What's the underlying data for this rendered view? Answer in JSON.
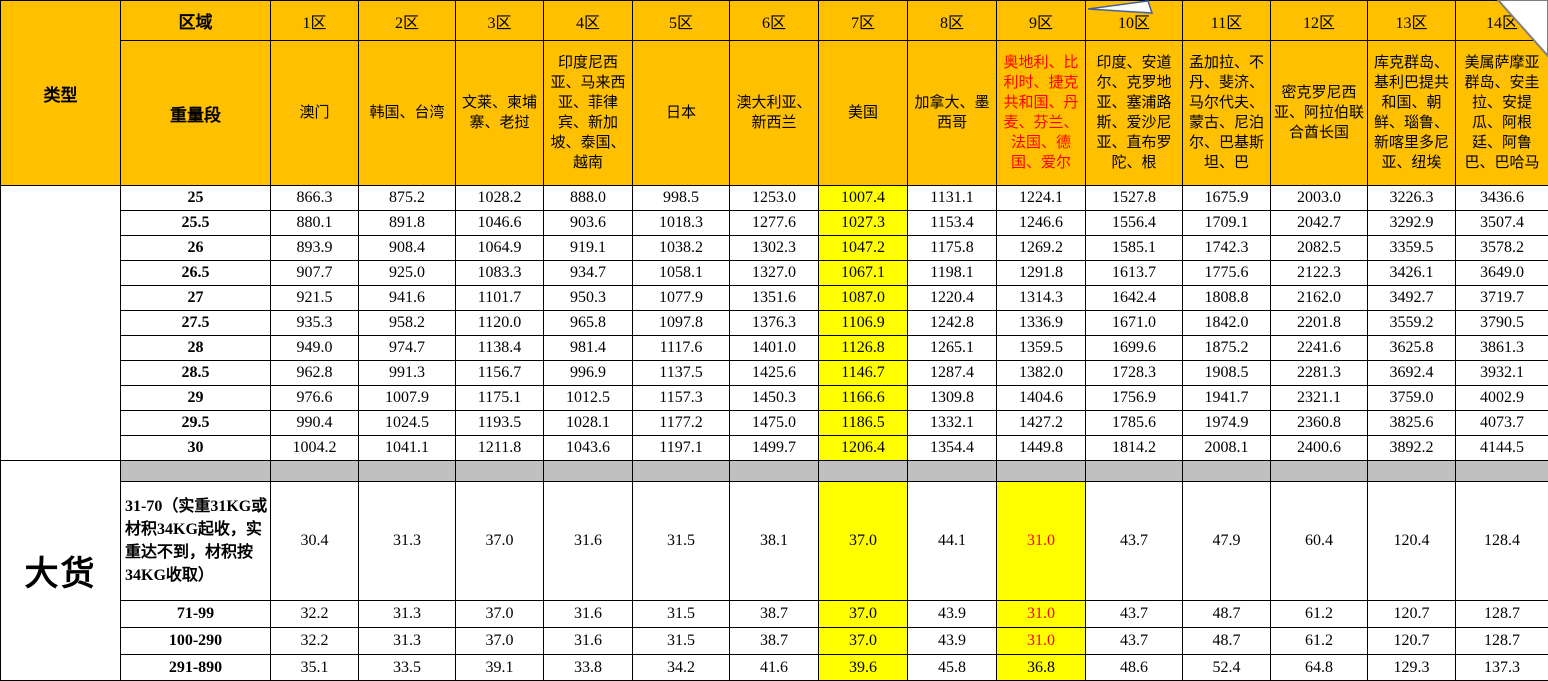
{
  "header": {
    "type_label": "类型",
    "region_label": "区域",
    "weight_label": "重量段",
    "zones": [
      {
        "id": "1区",
        "countries": "澳门"
      },
      {
        "id": "2区",
        "countries": "韩国、台湾"
      },
      {
        "id": "3区",
        "countries": "文莱、柬埔寨、老挝"
      },
      {
        "id": "4区",
        "countries": "印度尼西亚、马来西亚、菲律宾、新加坡、泰国、越南"
      },
      {
        "id": "5区",
        "countries": "日本"
      },
      {
        "id": "6区",
        "countries": "澳大利亚、新西兰"
      },
      {
        "id": "7区",
        "countries": "美国"
      },
      {
        "id": "8区",
        "countries": "加拿大、墨西哥"
      },
      {
        "id": "9区",
        "countries": "奥地利、比利时、捷克共和国、丹麦、芬兰、法国、德国、爱尔",
        "color": "#FF0000"
      },
      {
        "id": "10区",
        "countries": "印度、安道尔、克罗地亚、塞浦路斯、爱沙尼亚、直布罗陀、根"
      },
      {
        "id": "11区",
        "countries": "孟加拉、不丹、斐济、马尔代夫、蒙古、尼泊尔、巴基斯坦、巴"
      },
      {
        "id": "12区",
        "countries": "密克罗尼西亚、阿拉伯联合酋长国"
      },
      {
        "id": "13区",
        "countries": "库克群岛、基利巴提共和国、朝鲜、瑙鲁、新喀里多尼亚、纽埃"
      },
      {
        "id": "14区",
        "countries": "美属萨摩亚群岛、安圭拉、安提瓜、阿根廷、阿鲁巴、巴哈马"
      }
    ]
  },
  "standard_rows": [
    {
      "weight": "25",
      "values": [
        "866.3",
        "875.2",
        "1028.2",
        "888.0",
        "998.5",
        "1253.0",
        "1007.4",
        "1131.1",
        "1224.1",
        "1527.8",
        "1675.9",
        "2003.0",
        "3226.3",
        "3436.6"
      ]
    },
    {
      "weight": "25.5",
      "values": [
        "880.1",
        "891.8",
        "1046.6",
        "903.6",
        "1018.3",
        "1277.6",
        "1027.3",
        "1153.4",
        "1246.6",
        "1556.4",
        "1709.1",
        "2042.7",
        "3292.9",
        "3507.4"
      ]
    },
    {
      "weight": "26",
      "values": [
        "893.9",
        "908.4",
        "1064.9",
        "919.1",
        "1038.2",
        "1302.3",
        "1047.2",
        "1175.8",
        "1269.2",
        "1585.1",
        "1742.3",
        "2082.5",
        "3359.5",
        "3578.2"
      ]
    },
    {
      "weight": "26.5",
      "values": [
        "907.7",
        "925.0",
        "1083.3",
        "934.7",
        "1058.1",
        "1327.0",
        "1067.1",
        "1198.1",
        "1291.8",
        "1613.7",
        "1775.6",
        "2122.3",
        "3426.1",
        "3649.0"
      ]
    },
    {
      "weight": "27",
      "values": [
        "921.5",
        "941.6",
        "1101.7",
        "950.3",
        "1077.9",
        "1351.6",
        "1087.0",
        "1220.4",
        "1314.3",
        "1642.4",
        "1808.8",
        "2162.0",
        "3492.7",
        "3719.7"
      ]
    },
    {
      "weight": "27.5",
      "values": [
        "935.3",
        "958.2",
        "1120.0",
        "965.8",
        "1097.8",
        "1376.3",
        "1106.9",
        "1242.8",
        "1336.9",
        "1671.0",
        "1842.0",
        "2201.8",
        "3559.2",
        "3790.5"
      ]
    },
    {
      "weight": "28",
      "values": [
        "949.0",
        "974.7",
        "1138.4",
        "981.4",
        "1117.6",
        "1401.0",
        "1126.8",
        "1265.1",
        "1359.5",
        "1699.6",
        "1875.2",
        "2241.6",
        "3625.8",
        "3861.3"
      ]
    },
    {
      "weight": "28.5",
      "values": [
        "962.8",
        "991.3",
        "1156.7",
        "996.9",
        "1137.5",
        "1425.6",
        "1146.7",
        "1287.4",
        "1382.0",
        "1728.3",
        "1908.5",
        "2281.3",
        "3692.4",
        "3932.1"
      ]
    },
    {
      "weight": "29",
      "values": [
        "976.6",
        "1007.9",
        "1175.1",
        "1012.5",
        "1157.3",
        "1450.3",
        "1166.6",
        "1309.8",
        "1404.6",
        "1756.9",
        "1941.7",
        "2321.1",
        "3759.0",
        "4002.9"
      ]
    },
    {
      "weight": "29.5",
      "values": [
        "990.4",
        "1024.5",
        "1193.5",
        "1028.1",
        "1177.2",
        "1475.0",
        "1186.5",
        "1332.1",
        "1427.2",
        "1785.6",
        "1974.9",
        "2360.8",
        "3825.6",
        "4073.7"
      ]
    },
    {
      "weight": "30",
      "values": [
        "1004.2",
        "1041.1",
        "1211.8",
        "1043.6",
        "1197.1",
        "1499.7",
        "1206.4",
        "1354.4",
        "1449.8",
        "1814.2",
        "2008.1",
        "2400.6",
        "3892.2",
        "4144.5"
      ]
    }
  ],
  "large_cargo": {
    "type_label": "大货",
    "rows": [
      {
        "weight": "31-70（实重31KG或材积34KG起收，实重达不到，材积按34KG收取）",
        "align": "left",
        "values": [
          "30.4",
          "31.3",
          "37.0",
          "31.6",
          "31.5",
          "38.1",
          "37.0",
          "44.1",
          "31.0",
          "43.7",
          "47.9",
          "60.4",
          "120.4",
          "128.4"
        ]
      },
      {
        "weight": "71-99",
        "values": [
          "32.2",
          "31.3",
          "37.0",
          "31.6",
          "31.5",
          "38.7",
          "37.0",
          "43.9",
          "31.0",
          "43.7",
          "48.7",
          "61.2",
          "120.7",
          "128.7"
        ]
      },
      {
        "weight": "100-290",
        "values": [
          "32.2",
          "31.3",
          "37.0",
          "31.6",
          "31.5",
          "38.7",
          "37.0",
          "43.9",
          "31.0",
          "43.7",
          "48.7",
          "61.2",
          "120.7",
          "128.7"
        ]
      },
      {
        "weight": "291-890",
        "values": [
          "35.1",
          "33.5",
          "39.1",
          "33.8",
          "34.2",
          "41.6",
          "39.6",
          "45.8",
          "36.8",
          "48.6",
          "52.4",
          "64.8",
          "129.3",
          "137.3"
        ]
      }
    ]
  },
  "highlights": {
    "standard_yellow_col": 6,
    "cargo_yellow_cols": [
      6,
      8
    ],
    "cargo_red_cells": [
      [
        0,
        8
      ],
      [
        1,
        8
      ],
      [
        2,
        8
      ]
    ]
  },
  "colors": {
    "header_bg": "#FFC000",
    "highlight_bg": "#FFFF00",
    "separator_bg": "#C0C0C0",
    "red_text": "#FF0000",
    "border": "#000000"
  }
}
